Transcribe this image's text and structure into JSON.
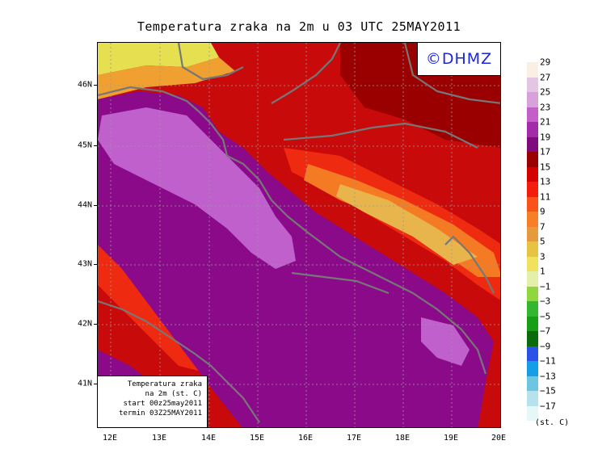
{
  "title": "Temperatura zraka na 2m u 03 UTC 25MAY2011",
  "logo": "©DHMZ",
  "info_box": {
    "line1": "Temperatura zraka",
    "line2": "na 2m (st. C)",
    "line3": "start 00z25may2011",
    "line4": "termin 03Z25MAY2011"
  },
  "lat_labels": [
    "46N",
    "45N",
    "44N",
    "43N",
    "42N",
    "41N"
  ],
  "lon_labels": [
    "12E",
    "13E",
    "14E",
    "15E",
    "16E",
    "17E",
    "18E",
    "19E",
    "20E"
  ],
  "legend": {
    "labels": [
      "29",
      "27",
      "25",
      "23",
      "21",
      "19",
      "17",
      "15",
      "13",
      "11",
      "9",
      "7",
      "5",
      "3",
      "1",
      "−1",
      "−3",
      "−5",
      "−7",
      "−9",
      "−11",
      "−13",
      "−15",
      "−17"
    ],
    "colors": [
      "#fbeee3",
      "#e3c6e4",
      "#d9a1dc",
      "#c45ec9",
      "#a32aa9",
      "#7e0a7e",
      "#9a0000",
      "#d40000",
      "#f41c0c",
      "#f9521a",
      "#f77f28",
      "#e69a3e",
      "#e7c342",
      "#f0e25e",
      "#e4efaa",
      "#8fd63f",
      "#33b733",
      "#159e16",
      "#0a6b0a",
      "#2a52e8",
      "#149ee8",
      "#6cc5e1",
      "#b5e2ec",
      "#e6f7f7"
    ],
    "units": "(st. C)"
  },
  "colors": {
    "sea": "#8a0a8a",
    "sea_cool": "#c060cc",
    "land_hot": "#c80a0a",
    "land_warm": "#ee2a10",
    "land_mild": "#f47a24",
    "land_cool": "#e8b44c",
    "alps_cold": "#e6e050",
    "coast": "#777777",
    "grid": "#9a9a9a"
  }
}
